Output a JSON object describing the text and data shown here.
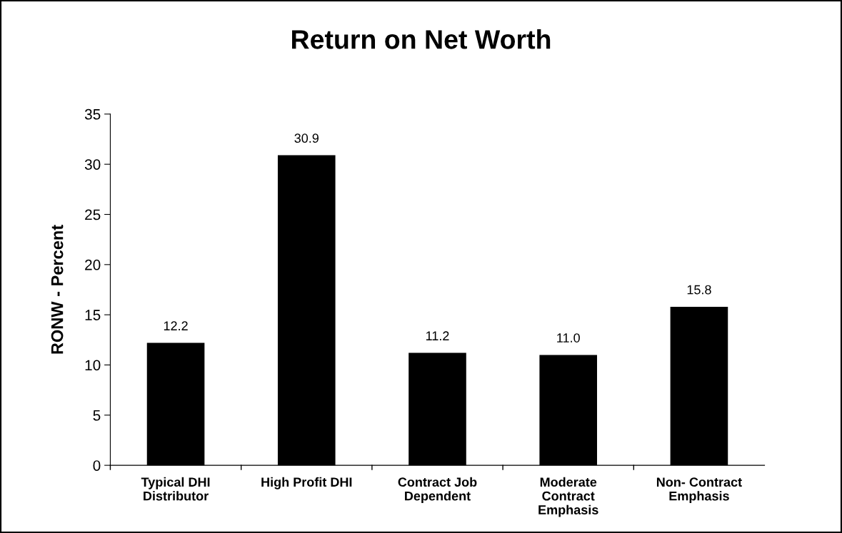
{
  "chart_data": {
    "type": "bar",
    "title": "Return on Net Worth",
    "ylabel": "RONW - Percent",
    "categories": [
      "Typical DHI\nDistributor",
      "High Profit DHI",
      "Contract Job\nDependent",
      "Moderate\nContract\nEmphasis",
      "Non- Contract\nEmphasis"
    ],
    "values": [
      12.2,
      30.9,
      11.2,
      11.0,
      15.8
    ],
    "value_labels": [
      "12.2",
      "30.9",
      "11.2",
      "11.0",
      "15.8"
    ],
    "color": "#000000",
    "ylim": [
      0,
      35
    ],
    "yticks": [
      0,
      5,
      10,
      15,
      20,
      25,
      30,
      35
    ],
    "grid": false,
    "legend": false
  }
}
